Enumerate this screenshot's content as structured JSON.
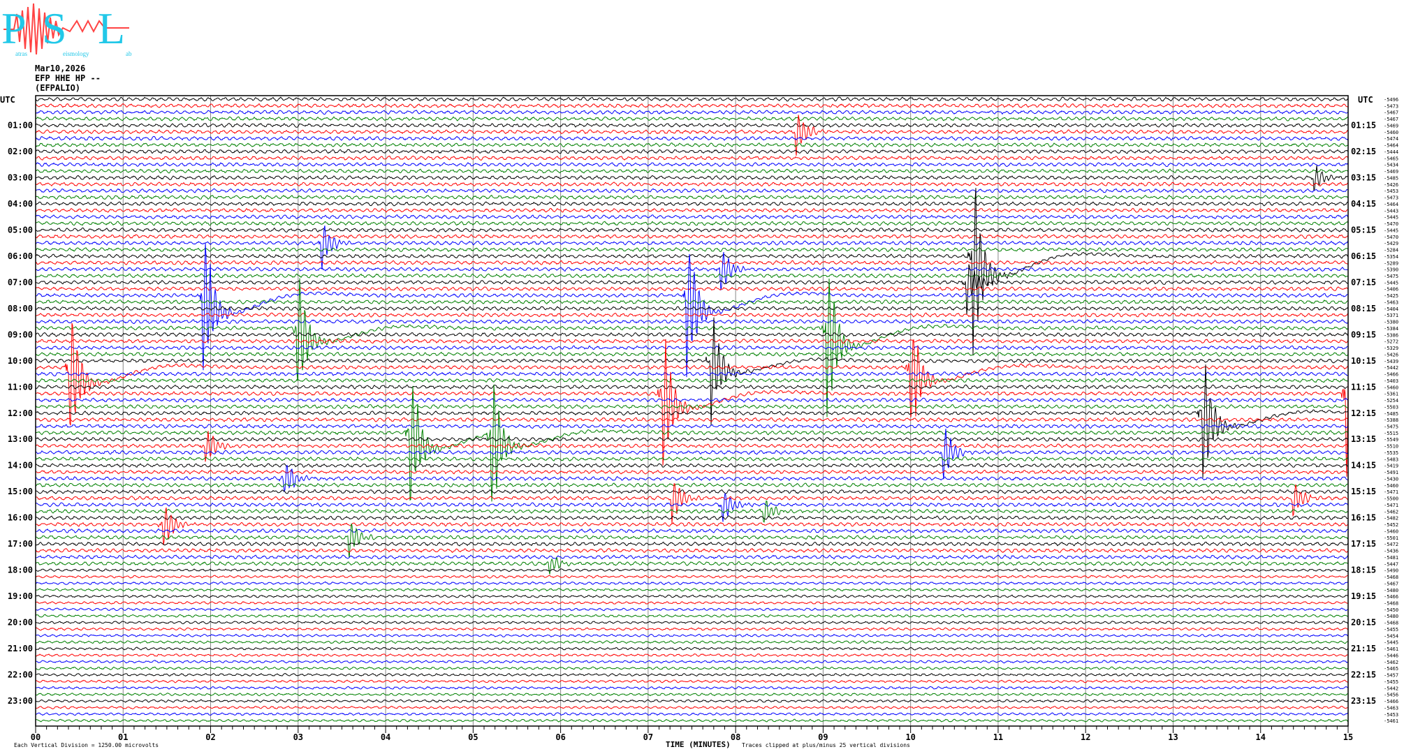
{
  "logo": {
    "letters": [
      "P",
      "S",
      "L"
    ],
    "small_text": [
      "atras",
      "eismology",
      "ab"
    ],
    "colors": {
      "letters": "#22c8e8",
      "wave": "#ff3333"
    }
  },
  "header": {
    "date": "Mar10,2026",
    "channel": "EFP HHE HP --",
    "station": "(EFPALIO)"
  },
  "chart_data": {
    "type": "line",
    "title": "",
    "left_axis_title": "UTC",
    "right_axis_title": "UTC",
    "xlabel": "TIME (MINUTES)",
    "xlim": [
      0,
      15
    ],
    "x_tick_labels": [
      "00",
      "01",
      "02",
      "03",
      "04",
      "05",
      "06",
      "07",
      "08",
      "09",
      "10",
      "11",
      "12",
      "13",
      "14",
      "15"
    ],
    "grid": "vertical every minute",
    "trace_colors": [
      "#000000",
      "#ff0000",
      "#0000ff",
      "#008000"
    ],
    "left_labels": [
      "01:00",
      "02:00",
      "03:00",
      "04:00",
      "05:00",
      "06:00",
      "07:00",
      "08:00",
      "09:00",
      "10:00",
      "11:00",
      "12:00",
      "13:00",
      "14:00",
      "15:00",
      "16:00",
      "17:00",
      "18:00",
      "19:00",
      "20:00",
      "21:00",
      "22:00",
      "23:00"
    ],
    "right_labels": [
      "01:15",
      "02:15",
      "03:15",
      "04:15",
      "05:15",
      "06:15",
      "07:15",
      "08:15",
      "09:15",
      "10:15",
      "11:15",
      "12:15",
      "13:15",
      "14:15",
      "15:15",
      "16:15",
      "17:15",
      "18:15",
      "19:15",
      "20:15",
      "21:15",
      "22:15",
      "23:15"
    ],
    "trace_offsets": [
      "-5496",
      "-5473",
      "-5467",
      "-5467",
      "-5469",
      "-5460",
      "-5474",
      "-5464",
      "-5444",
      "-5465",
      "-5434",
      "-5469",
      "-5485",
      "-5426",
      "-5453",
      "-5473",
      "-5464",
      "-5443",
      "-5445",
      "-5470",
      "-5445",
      "-5470",
      "-5429",
      "-5284",
      "-5354",
      "-5289",
      "-5390",
      "-5475",
      "-5445",
      "-5406",
      "-5425",
      "-5463",
      "-5404",
      "-5371",
      "-5380",
      "-5384",
      "-5386",
      "-5272",
      "-5329",
      "-5426",
      "-5439",
      "-5442",
      "-5466",
      "-5403",
      "-5460",
      "-5361",
      "-5254",
      "-5503",
      "-5485",
      "-5388",
      "-5475",
      "-5515",
      "-5549",
      "-5510",
      "-5535",
      "-5483",
      "-5419",
      "-5491",
      "-5430",
      "-5460",
      "-5471",
      "-5500",
      "-5471",
      "-5462",
      "-5482",
      "-5452",
      "-5460",
      "-5501",
      "-5472",
      "-5436",
      "-5481",
      "-5447",
      "-5490",
      "-5468",
      "-5467",
      "-5480",
      "-5466",
      "-5468",
      "-5450",
      "-5480",
      "-5468",
      "-5455",
      "-5454",
      "-5445",
      "-5461",
      "-5446",
      "-5462",
      "-5465",
      "-5457",
      "-5455",
      "-5442",
      "-5456",
      "-5466",
      "-5463",
      "-5453",
      "-5461"
    ],
    "events": [
      {
        "row_start": "01:15",
        "minute": 8.68,
        "amplitude_div": 5
      },
      {
        "row_start": "06:00",
        "minute": 10.7,
        "amplitude_div": 20
      },
      {
        "row_start": "03:00",
        "minute": 14.6,
        "amplitude_div": 3
      },
      {
        "row_start": "07:30",
        "minute": 1.9,
        "amplitude_div": 18
      },
      {
        "row_start": "05:30",
        "minute": 3.26,
        "amplitude_div": 5
      },
      {
        "row_start": "10:15",
        "minute": 0.38,
        "amplitude_div": 16
      },
      {
        "row_start": "08:45",
        "minute": 2.98,
        "amplitude_div": 14
      },
      {
        "row_start": "07:30",
        "minute": 7.43,
        "amplitude_div": 17
      },
      {
        "row_start": "06:30",
        "minute": 7.82,
        "amplitude_div": 5
      },
      {
        "row_start": "10:00",
        "minute": 7.71,
        "amplitude_div": 12
      },
      {
        "row_start": "11:15",
        "minute": 7.16,
        "amplitude_div": 15
      },
      {
        "row_start": "08:45",
        "minute": 9.03,
        "amplitude_div": 18
      },
      {
        "row_start": "10:15",
        "minute": 9.99,
        "amplitude_div": 14
      },
      {
        "row_start": "07:00",
        "minute": 10.63,
        "amplitude_div": 6
      },
      {
        "row_start": "13:30",
        "minute": 10.36,
        "amplitude_div": 6
      },
      {
        "row_start": "12:45",
        "minute": 4.27,
        "amplitude_div": 16
      },
      {
        "row_start": "12:45",
        "minute": 5.2,
        "amplitude_div": 16
      },
      {
        "row_start": "12:00",
        "minute": 13.33,
        "amplitude_div": 14
      },
      {
        "row_start": "11:15",
        "minute": 14.97,
        "amplitude_div": 18
      },
      {
        "row_start": "13:15",
        "minute": 1.93,
        "amplitude_div": 4
      },
      {
        "row_start": "14:30",
        "minute": 2.83,
        "amplitude_div": 4
      },
      {
        "row_start": "16:15",
        "minute": 1.45,
        "amplitude_div": 5
      },
      {
        "row_start": "16:45",
        "minute": 3.57,
        "amplitude_div": 4
      },
      {
        "row_start": "15:15",
        "minute": 7.26,
        "amplitude_div": 5
      },
      {
        "row_start": "15:30",
        "minute": 7.84,
        "amplitude_div": 4
      },
      {
        "row_start": "15:45",
        "minute": 8.31,
        "amplitude_div": 3
      },
      {
        "row_start": "15:15",
        "minute": 14.36,
        "amplitude_div": 4
      },
      {
        "row_start": "17:45",
        "minute": 5.86,
        "amplitude_div": 2
      }
    ]
  },
  "footer": {
    "scale_note": "Each Vertical Division = 1250.00 microvolts",
    "xlabel": "TIME (MINUTES)",
    "clip_note": "Traces clipped at plus/minus 25 vertical divisions"
  }
}
